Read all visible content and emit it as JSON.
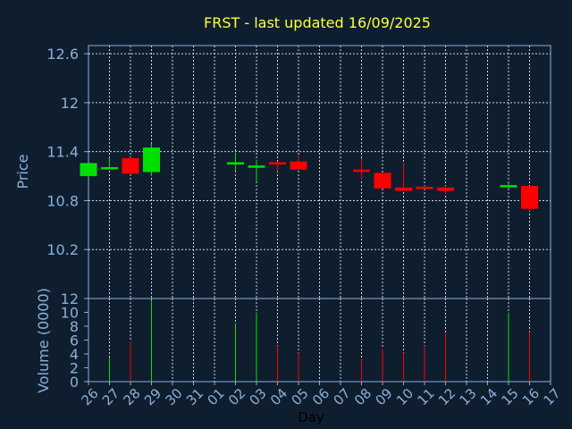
{
  "colors": {
    "background": "#0f1e2f",
    "frame": "#8ab0d8",
    "grid": "#d0d8e0",
    "axis_text": "#8ab0d8",
    "title": "#ffff40",
    "up": "#00e000",
    "down": "#ff0000"
  },
  "chart_data": [
    {
      "type": "candlestick",
      "title": "FRST - last updated 16/09/2025",
      "ylabel": "Price",
      "ylim": [
        9.6,
        12.7
      ],
      "yticks": [
        12.6,
        12,
        11.4,
        10.8,
        10.2
      ],
      "grid": true,
      "x_categories": [
        "26",
        "27",
        "28",
        "29",
        "30",
        "31",
        "01",
        "02",
        "03",
        "04",
        "05",
        "06",
        "07",
        "08",
        "09",
        "10",
        "11",
        "12",
        "13",
        "14",
        "15",
        "16",
        "17"
      ],
      "candles": [
        {
          "day": "26",
          "open": 11.1,
          "high": 11.26,
          "low": 11.09,
          "close": 11.26
        },
        {
          "day": "27",
          "open": 11.2,
          "high": 11.33,
          "low": 11.19,
          "close": 11.21
        },
        {
          "day": "28",
          "open": 11.32,
          "high": 11.33,
          "low": 11.12,
          "close": 11.13
        },
        {
          "day": "29",
          "open": 11.15,
          "high": 11.5,
          "low": 11.1,
          "close": 11.45
        },
        {
          "day": "02",
          "open": 11.25,
          "high": 11.38,
          "low": 11.16,
          "close": 11.27
        },
        {
          "day": "03",
          "open": 11.21,
          "high": 11.3,
          "low": 11.03,
          "close": 11.23
        },
        {
          "day": "04",
          "open": 11.27,
          "high": 11.28,
          "low": 11.16,
          "close": 11.25
        },
        {
          "day": "05",
          "open": 11.28,
          "high": 11.36,
          "low": 11.17,
          "close": 11.18
        },
        {
          "day": "08",
          "open": 11.18,
          "high": 11.32,
          "low": 11.06,
          "close": 11.16
        },
        {
          "day": "09",
          "open": 11.14,
          "high": 11.14,
          "low": 10.95,
          "close": 10.95
        },
        {
          "day": "10",
          "open": 10.96,
          "high": 11.25,
          "low": 10.92,
          "close": 10.92
        },
        {
          "day": "11",
          "open": 10.97,
          "high": 10.98,
          "low": 10.96,
          "close": 10.96
        },
        {
          "day": "12",
          "open": 10.96,
          "high": 10.98,
          "low": 10.88,
          "close": 10.92
        },
        {
          "day": "15",
          "open": 10.97,
          "high": 11.02,
          "low": 10.95,
          "close": 10.99
        },
        {
          "day": "16",
          "open": 10.98,
          "high": 10.98,
          "low": 10.67,
          "close": 10.7
        }
      ]
    },
    {
      "type": "bar",
      "xlabel": "Day",
      "ylabel": "Volume (0000)",
      "ylim": [
        0,
        12
      ],
      "yticks": [
        0,
        2,
        4,
        6,
        8,
        10,
        12
      ],
      "grid": true,
      "categories": [
        "26",
        "27",
        "28",
        "29",
        "30",
        "31",
        "01",
        "02",
        "03",
        "04",
        "05",
        "06",
        "07",
        "08",
        "09",
        "10",
        "11",
        "12",
        "13",
        "14",
        "15",
        "16",
        "17"
      ],
      "bars": [
        {
          "day": "27",
          "value": 3.5,
          "direction": "up"
        },
        {
          "day": "28",
          "value": 5.8,
          "direction": "down"
        },
        {
          "day": "29",
          "value": 11.8,
          "direction": "up"
        },
        {
          "day": "02",
          "value": 8.4,
          "direction": "up"
        },
        {
          "day": "03",
          "value": 10.0,
          "direction": "up"
        },
        {
          "day": "04",
          "value": 5.2,
          "direction": "down"
        },
        {
          "day": "05",
          "value": 4.2,
          "direction": "down"
        },
        {
          "day": "08",
          "value": 3.2,
          "direction": "down"
        },
        {
          "day": "09",
          "value": 4.8,
          "direction": "down"
        },
        {
          "day": "10",
          "value": 4.2,
          "direction": "down"
        },
        {
          "day": "11",
          "value": 5.2,
          "direction": "down"
        },
        {
          "day": "12",
          "value": 7.0,
          "direction": "down"
        },
        {
          "day": "15",
          "value": 10.0,
          "direction": "up"
        },
        {
          "day": "16",
          "value": 7.2,
          "direction": "down"
        }
      ]
    }
  ]
}
